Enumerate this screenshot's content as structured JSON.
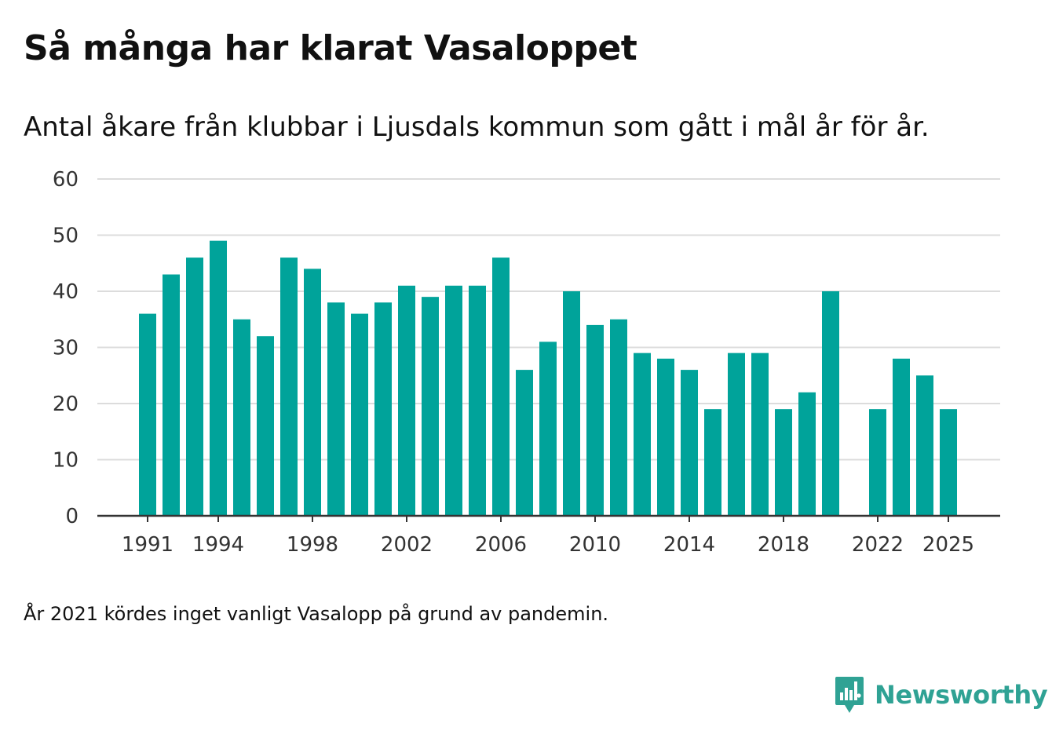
{
  "title": "Så många har klarat Vasaloppet",
  "subtitle": "Antal åkare från klubbar i Ljusdals kommun som gått i mål år för år.",
  "footnote": "År 2021 kördes inget vanligt Vasalopp på grund av pandemin.",
  "brand": {
    "name": "Newsworthy",
    "icon": "newsworthy-logo-icon",
    "color": "#2fa294"
  },
  "chart_data": {
    "type": "bar",
    "title": "Så många har klarat Vasaloppet",
    "xlabel": "",
    "ylabel": "",
    "ylim": [
      0,
      60
    ],
    "yticks": [
      0,
      10,
      20,
      30,
      40,
      50,
      60
    ],
    "xticks": [
      1991,
      1994,
      1998,
      2002,
      2006,
      2010,
      2014,
      2018,
      2022,
      2025
    ],
    "grid": true,
    "bar_color": "#00a39a",
    "categories": [
      1991,
      1992,
      1993,
      1994,
      1995,
      1996,
      1997,
      1998,
      1999,
      2000,
      2001,
      2002,
      2003,
      2004,
      2005,
      2006,
      2007,
      2008,
      2009,
      2010,
      2011,
      2012,
      2013,
      2014,
      2015,
      2016,
      2017,
      2018,
      2019,
      2020,
      2021,
      2022,
      2023,
      2024,
      2025
    ],
    "values": [
      36,
      43,
      46,
      49,
      35,
      32,
      46,
      44,
      38,
      36,
      38,
      41,
      39,
      41,
      41,
      46,
      26,
      31,
      40,
      34,
      35,
      29,
      28,
      26,
      19,
      29,
      29,
      19,
      22,
      40,
      null,
      19,
      28,
      25,
      19
    ]
  }
}
